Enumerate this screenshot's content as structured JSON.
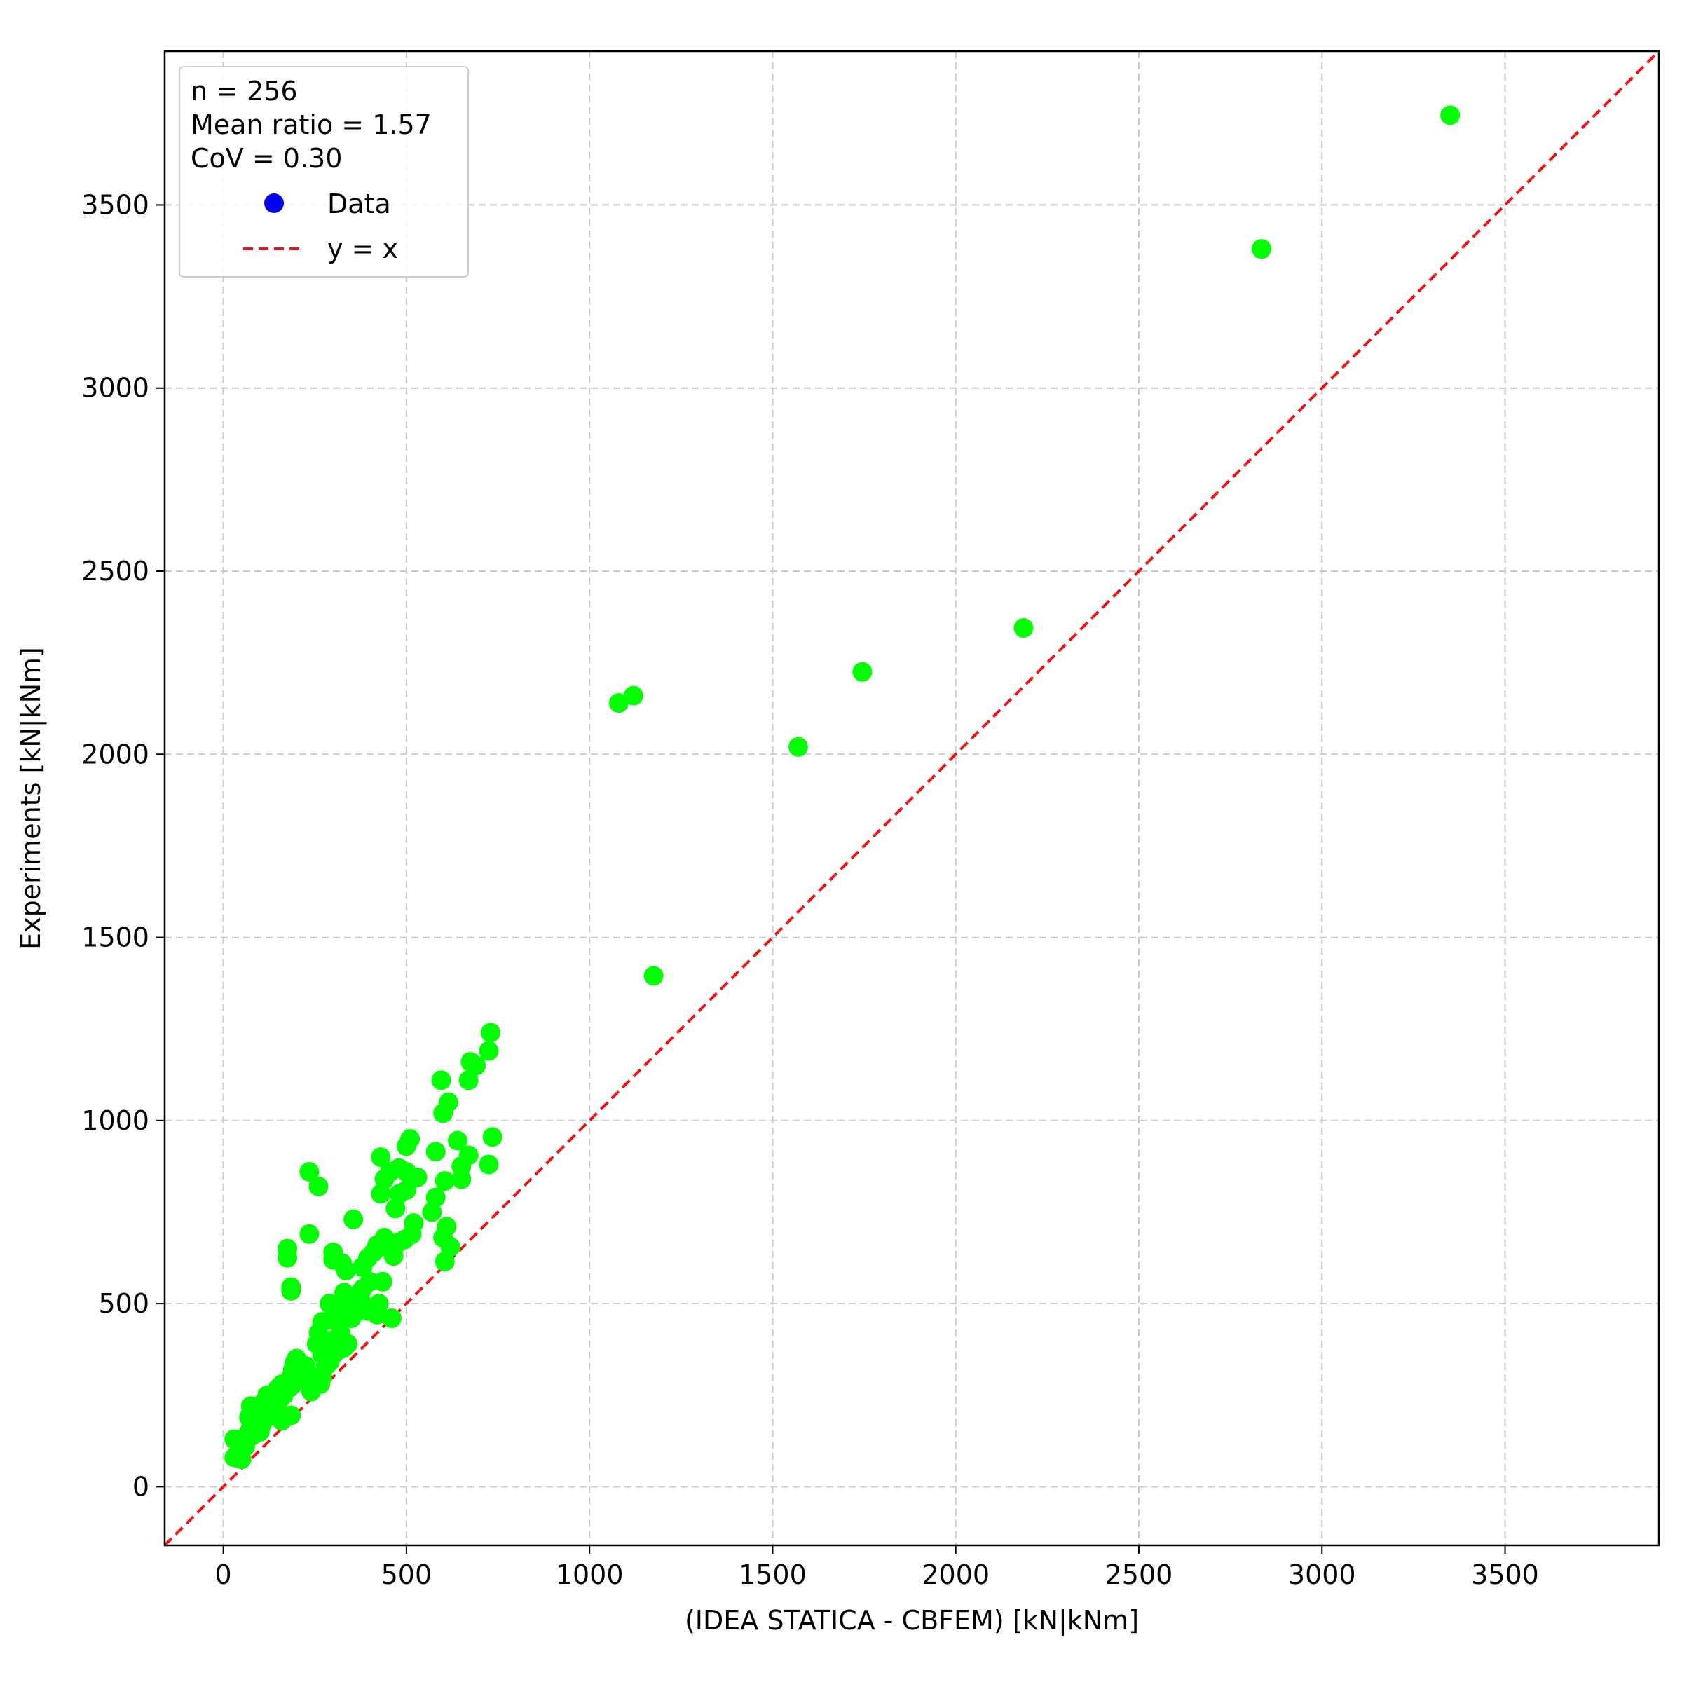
{
  "chart_data": {
    "type": "scatter",
    "xlabel": "(IDEA STATICA - CBFEM) [kN|kNm]",
    "ylabel": "Experiments [kN|kNm]",
    "xlim": [
      -160,
      3920
    ],
    "ylim": [
      -160,
      3920
    ],
    "x_ticks": [
      0,
      500,
      1000,
      1500,
      2000,
      2500,
      3000,
      3500
    ],
    "y_ticks": [
      0,
      500,
      1000,
      1500,
      2000,
      2500,
      3000,
      3500
    ],
    "x_tick_labels": [
      "0",
      "500",
      "1000",
      "1500",
      "2000",
      "2500",
      "3000",
      "3500"
    ],
    "y_tick_labels": [
      "0",
      "500",
      "1000",
      "1500",
      "2000",
      "2500",
      "3000",
      "3500"
    ],
    "grid": true,
    "legend_position": "top-left",
    "legend": {
      "stats": [
        "n = 256",
        "Mean ratio = 1.57",
        "CoV = 0.30"
      ],
      "entries": [
        {
          "label": "Data",
          "marker": "circle",
          "color": "#0000ee"
        },
        {
          "label": "y = x",
          "marker": "dashed-line",
          "color": "#ee1111"
        }
      ]
    },
    "colors": {
      "points": "#00ff00",
      "reference_line": "#ee1111",
      "grid": "#c8c8c8"
    },
    "series": [
      {
        "marker": "circle",
        "points": [
          [
            3350,
            3745
          ],
          [
            2835,
            3380
          ],
          [
            2185,
            2345
          ],
          [
            1745,
            2225
          ],
          [
            1570,
            2020
          ],
          [
            1120,
            2160
          ],
          [
            1080,
            2140
          ],
          [
            1175,
            1395
          ],
          [
            730,
            1240
          ],
          [
            725,
            1190
          ],
          [
            675,
            1160
          ],
          [
            690,
            1150
          ],
          [
            670,
            1110
          ],
          [
            595,
            1110
          ],
          [
            615,
            1050
          ],
          [
            600,
            1020
          ],
          [
            735,
            955
          ],
          [
            725,
            880
          ],
          [
            640,
            945
          ],
          [
            670,
            905
          ],
          [
            650,
            875
          ],
          [
            650,
            840
          ],
          [
            605,
            835
          ],
          [
            580,
            915
          ],
          [
            580,
            790
          ],
          [
            570,
            750
          ],
          [
            610,
            710
          ],
          [
            600,
            680
          ],
          [
            620,
            655
          ],
          [
            605,
            615
          ],
          [
            510,
            950
          ],
          [
            500,
            930
          ],
          [
            480,
            870
          ],
          [
            500,
            860
          ],
          [
            530,
            845
          ],
          [
            500,
            810
          ],
          [
            480,
            800
          ],
          [
            470,
            760
          ],
          [
            430,
            900
          ],
          [
            440,
            840
          ],
          [
            430,
            800
          ],
          [
            455,
            860
          ],
          [
            520,
            720
          ],
          [
            515,
            690
          ],
          [
            495,
            675
          ],
          [
            475,
            665
          ],
          [
            455,
            650
          ],
          [
            440,
            680
          ],
          [
            420,
            660
          ],
          [
            410,
            640
          ],
          [
            395,
            625
          ],
          [
            380,
            600
          ],
          [
            465,
            630
          ],
          [
            435,
            560
          ],
          [
            400,
            560
          ],
          [
            380,
            540
          ],
          [
            360,
            520
          ],
          [
            350,
            500
          ],
          [
            330,
            530
          ],
          [
            320,
            500
          ],
          [
            310,
            470
          ],
          [
            300,
            490
          ],
          [
            310,
            450
          ],
          [
            320,
            420
          ],
          [
            300,
            400
          ],
          [
            330,
            380
          ],
          [
            310,
            370
          ],
          [
            340,
            390
          ],
          [
            350,
            460
          ],
          [
            370,
            480
          ],
          [
            380,
            500
          ],
          [
            395,
            480
          ],
          [
            425,
            500
          ],
          [
            460,
            460
          ],
          [
            420,
            470
          ],
          [
            355,
            730
          ],
          [
            335,
            590
          ],
          [
            300,
            640
          ],
          [
            300,
            620
          ],
          [
            325,
            610
          ],
          [
            235,
            860
          ],
          [
            260,
            820
          ],
          [
            235,
            690
          ],
          [
            175,
            650
          ],
          [
            175,
            625
          ],
          [
            185,
            545
          ],
          [
            185,
            535
          ],
          [
            290,
            500
          ],
          [
            270,
            450
          ],
          [
            260,
            420
          ],
          [
            255,
            390
          ],
          [
            270,
            360
          ],
          [
            290,
            340
          ],
          [
            300,
            360
          ],
          [
            280,
            330
          ],
          [
            270,
            300
          ],
          [
            265,
            280
          ],
          [
            245,
            300
          ],
          [
            225,
            330
          ],
          [
            215,
            310
          ],
          [
            225,
            290
          ],
          [
            240,
            260
          ],
          [
            200,
            350
          ],
          [
            195,
            340
          ],
          [
            190,
            320
          ],
          [
            185,
            300
          ],
          [
            190,
            280
          ],
          [
            180,
            270
          ],
          [
            160,
            280
          ],
          [
            165,
            250
          ],
          [
            150,
            270
          ],
          [
            155,
            240
          ],
          [
            145,
            230
          ],
          [
            140,
            210
          ],
          [
            150,
            195
          ],
          [
            160,
            180
          ],
          [
            185,
            195
          ],
          [
            120,
            250
          ],
          [
            110,
            230
          ],
          [
            110,
            200
          ],
          [
            120,
            190
          ],
          [
            105,
            170
          ],
          [
            100,
            150
          ],
          [
            75,
            220
          ],
          [
            70,
            190
          ],
          [
            80,
            170
          ],
          [
            70,
            150
          ],
          [
            80,
            140
          ],
          [
            65,
            130
          ],
          [
            50,
            120
          ],
          [
            60,
            110
          ],
          [
            40,
            120
          ],
          [
            30,
            130
          ],
          [
            30,
            80
          ],
          [
            40,
            90
          ],
          [
            50,
            75
          ]
        ]
      }
    ],
    "reference_line": {
      "label": "y = x",
      "from": [
        -160,
        -160
      ],
      "to": [
        3920,
        3920
      ]
    }
  }
}
